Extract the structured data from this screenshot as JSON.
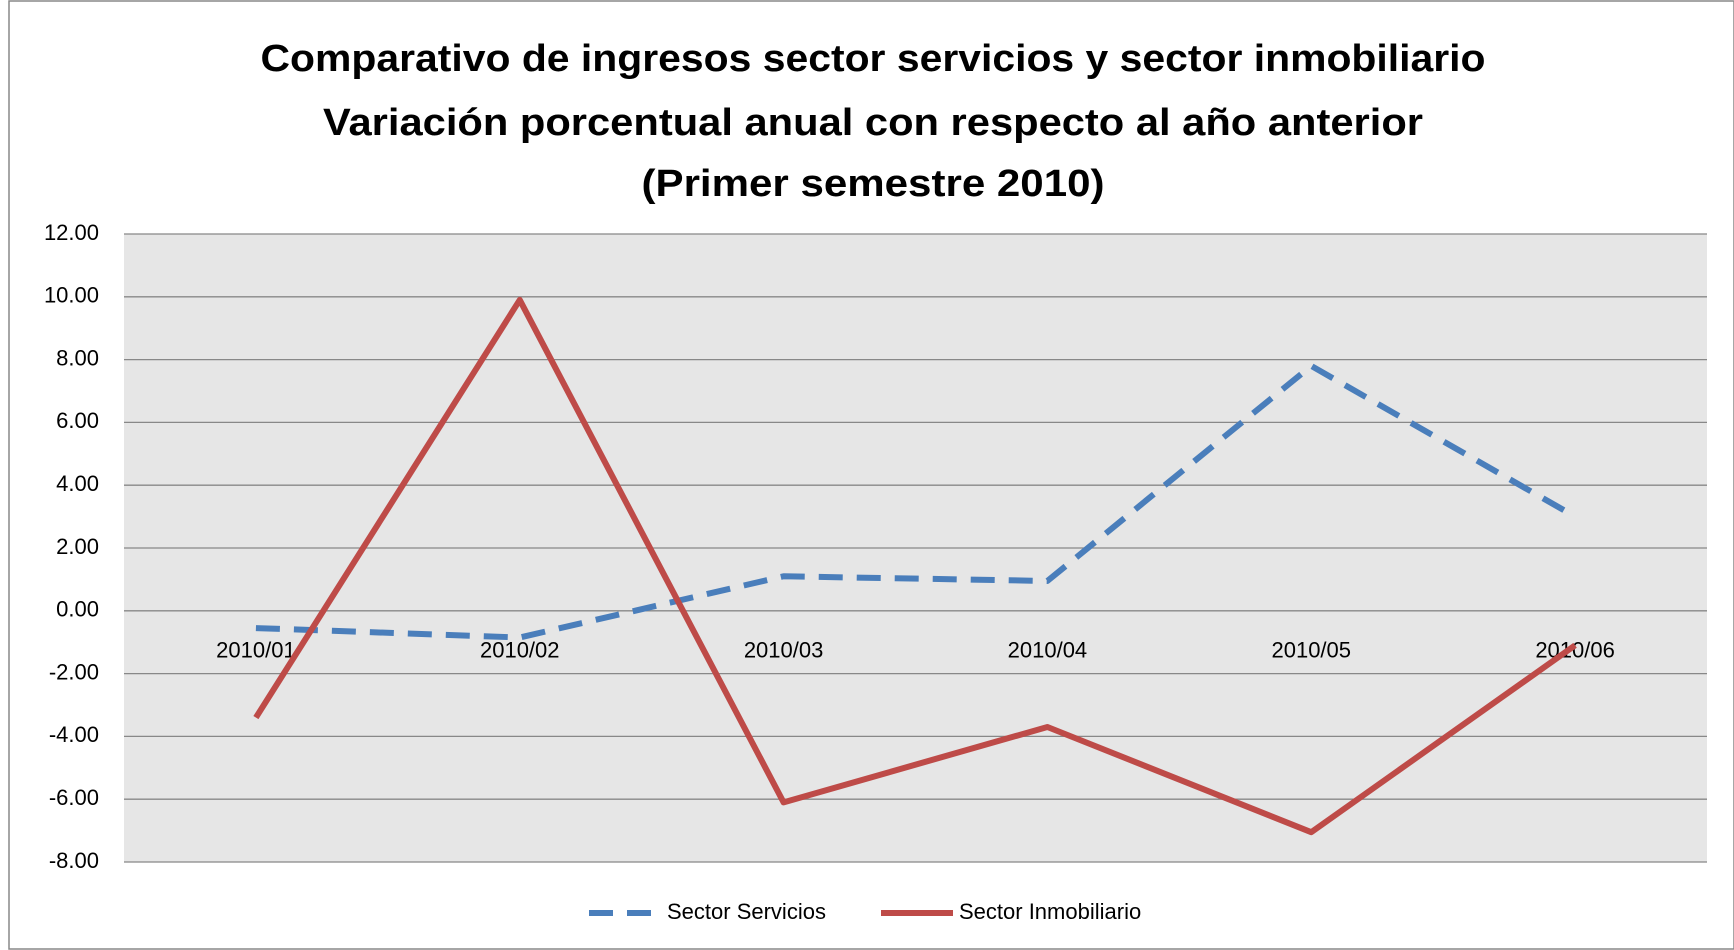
{
  "chart_data": {
    "type": "line",
    "title": [
      "Comparativo de ingresos sector servicios y sector inmobiliario",
      "Variación porcentual anual con respecto al año anterior",
      "(Primer semestre 2010)"
    ],
    "categories": [
      "2010/01",
      "2010/02",
      "2010/03",
      "2010/04",
      "2010/05",
      "2010/06"
    ],
    "series": [
      {
        "name": "Sector Servicios",
        "color": "#4a7ebb",
        "dash": true,
        "values": [
          -0.55,
          -0.85,
          1.1,
          0.95,
          7.8,
          3.0
        ]
      },
      {
        "name": "Sector Inmobiliario",
        "color": "#be4b48",
        "dash": false,
        "values": [
          -3.4,
          9.9,
          -6.1,
          -3.7,
          -7.05,
          -1.1
        ]
      }
    ],
    "ylim": [
      -8,
      12
    ],
    "yticks": [
      {
        "value": -8,
        "label": "-8.00"
      },
      {
        "value": -6,
        "label": "-6.00"
      },
      {
        "value": -4,
        "label": "-4.00"
      },
      {
        "value": -2,
        "label": "-2.00"
      },
      {
        "value": 0,
        "label": "0.00"
      },
      {
        "value": 2,
        "label": "2.00"
      },
      {
        "value": 4,
        "label": "4.00"
      },
      {
        "value": 6,
        "label": "6.00"
      },
      {
        "value": 8,
        "label": "8.00"
      },
      {
        "value": 10,
        "label": "10.00"
      },
      {
        "value": 12,
        "label": "12.00"
      }
    ],
    "grid": true,
    "legend": "bottom"
  }
}
